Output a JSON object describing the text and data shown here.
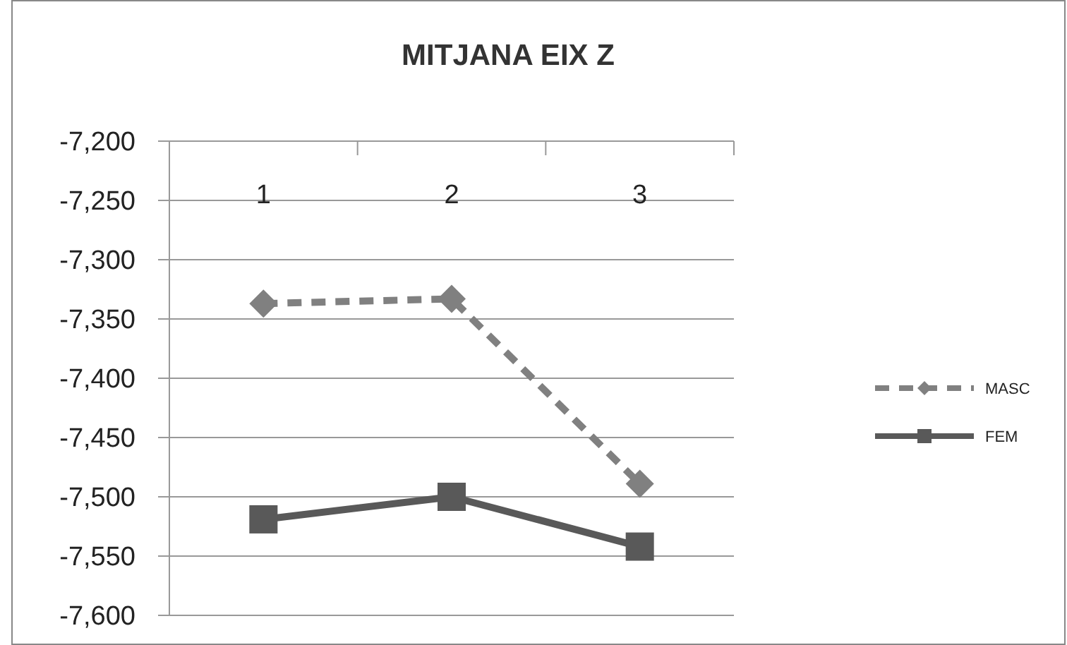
{
  "chart_data": {
    "type": "line",
    "title": "MITJANA EIX Z",
    "categories": [
      "1",
      "2",
      "3"
    ],
    "series": [
      {
        "name": "MASC",
        "color": "#808080",
        "values": [
          -7337,
          -7333,
          -7489
        ],
        "marker": "diamond",
        "line_style": "dashed"
      },
      {
        "name": "FEM",
        "color": "#595959",
        "values": [
          -7519,
          -7500,
          -7542
        ],
        "marker": "square",
        "line_style": "solid"
      }
    ],
    "ylim": [
      -7600,
      -7200
    ],
    "yticks": [
      {
        "value": -7200,
        "label": "-7,200"
      },
      {
        "value": -7250,
        "label": "-7,250"
      },
      {
        "value": -7300,
        "label": "-7,300"
      },
      {
        "value": -7350,
        "label": "-7,350"
      },
      {
        "value": -7400,
        "label": "-7,400"
      },
      {
        "value": -7450,
        "label": "-7,450"
      },
      {
        "value": -7500,
        "label": "-7,500"
      },
      {
        "value": -7550,
        "label": "-7,550"
      },
      {
        "value": -7600,
        "label": "-7,600"
      }
    ],
    "grid": "y",
    "legend": "right"
  }
}
